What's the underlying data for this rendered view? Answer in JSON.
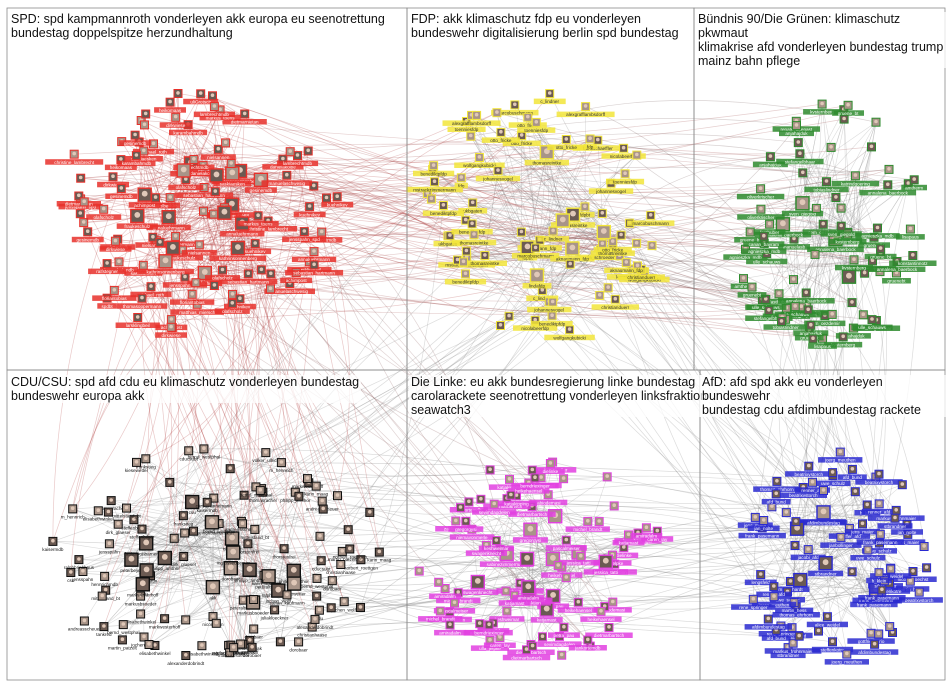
{
  "graph": {
    "panels": [
      {
        "id": "spd",
        "title": "SPD: spd kampmannroth vonderleyen akk europa eu seenotrettung\nbundestag doppelspitze herzundhaltung",
        "color": "#e8302a",
        "seed": 11,
        "labels": [
          "olafscholz",
          "thomasoppermann",
          "heikomaas",
          "larsklingbeil",
          "kuehnikev",
          "nielsannen",
          "saskiaesken",
          "jensspahn_spd",
          "karambahmdb",
          "michael_roth",
          "manuelaschwesig",
          "sebastian_hartmann",
          "fraukeschulz",
          "spdde",
          "spdbt",
          "dietmarnietan",
          "svenjaschulze68",
          "floriantobias",
          "christine_lambrecht",
          "kathrinsonnenberg",
          "achimpost",
          "uliGrotsch",
          "markus_toens",
          "gesinemdb",
          "dirkwiese",
          "matthias_miersch",
          "annaluehrmann",
          "danielakolbe",
          "lambrechtmdb",
          "ralfstegner"
        ]
      },
      {
        "id": "fdp",
        "title": "FDP: akk klimaschutz fdp eu vonderleyen\nbundeswehr digitalisierung berlin spd bundestag",
        "color": "#f2e53a",
        "seed": 23,
        "labels": [
          "c_lindner",
          "fdp",
          "marcobuschmann",
          "nicolabeerfdp",
          "wolfgangkubicki",
          "johannesvogel",
          "konstantinkuhle",
          "lindafdp",
          "benediktpfdp",
          "aknaumann_fdp",
          "mstrackzimmermann",
          "alexgrafflambsdorff",
          "otto_fricke",
          "thomasreintke",
          "ria_schroeder",
          "frankschaeffler",
          "ukbgaten",
          "christianduerr",
          "fdpbt",
          "toenniesfdp"
        ]
      },
      {
        "id": "gruene",
        "title": "Bündnis 90/Die Grünen: klimaschutz pkwmaut\nklimakrise afd vonderleyen bundestag trump\nmainz bahn pflege",
        "color": "#2e8b2e",
        "seed": 37,
        "labels": [
          "cem_oezdemir",
          "annalena_baerbock",
          "gruene_bt",
          "katrindgoering",
          "konstantinnotz",
          "sven_giegold",
          "tobiaslindner",
          "agnieszka_mdb",
          "manuelasb",
          "ulle_schauws",
          "oliverkrischer",
          "anjahajduk",
          "fasthuber",
          "stefangelbhaar",
          "amtherm",
          "gruenebt",
          "lisapaus",
          "renate_kuenast",
          "canan_bayram",
          "kvsternberg"
        ]
      },
      {
        "id": "cdu",
        "title": "CDU/CSU: spd afd cdu eu klimaschutz vonderleyen bundestag\nbundeswehr europa akk",
        "color": "#111111",
        "seed": 53,
        "labels": [
          "akk",
          "cdu",
          "csu",
          "peteraltmaier",
          "jensspahn",
          "cducsubt",
          "markusbsoeder",
          "ralphbrinkhaus",
          "andreasscheuer",
          "paulziemiak",
          "juliakloeckner",
          "thorstenfrei",
          "mgrosseboemer",
          "carstenlinnemann",
          "tankred",
          "peterbeyer",
          "mittelstand_bt",
          "dorobaer",
          "norbert_roettgen",
          "steffenbilger",
          "philipp_amthor",
          "nicomartin",
          "karin_maag",
          "christianhaase",
          "kiesewetter",
          "jochen_wolff",
          "m_hennrich",
          "bernd_westphal",
          "dirk_glaeser",
          "stefan_kaufmann",
          "hennrichmdb",
          "alexanderdobrindt",
          "frankstieg",
          "volker_ullrich",
          "markwesterhoff",
          "fabianvonbarnemann",
          "martin_patzelt",
          "kaisermdb",
          "thomasrachel",
          "elisabethwinkel"
        ]
      },
      {
        "id": "linke",
        "title": "Die Linke: eu akk bundesregierung linke bundestag\ncarolarackete seenotrettung vonderleyen linksfraktion\nseawatch3",
        "color": "#e23fe0",
        "seed": 71,
        "labels": [
          "dietmarbartsch",
          "swagenknecht",
          "katjakipping",
          "berndriexinger",
          "jankortemdb",
          "linksfraktion",
          "dielinke",
          "sevimdagdelen",
          "niemavonmerle",
          "zaklinnastic",
          "gregorgysi",
          "ulla_jelpke",
          "andrejhunko",
          "sabinezimmermann",
          "caren_lay",
          "heikehaensel",
          "fabiodemasi",
          "petra_pau",
          "michel_brandt",
          "norbertmueller",
          "katjamast",
          "keshweimar",
          "jessica_tatti",
          "pascalmeiser",
          "amiradalm"
        ]
      },
      {
        "id": "afd",
        "title": "AfD: afd spd akk eu vonderleyen bundeswehr\nbundestag cdu afdimbundestag rackete",
        "color": "#2a2ad0",
        "seed": 89,
        "labels": [
          "alice_weidel",
          "joerg_meuthen",
          "beatrixvstorch",
          "afdimbundestag",
          "afd_bund",
          "gottfriedcurio",
          "frank_pasemann",
          "stbrandner",
          "marcbernhard",
          "jens_maier",
          "nicole_hoechst",
          "martin_hess",
          "lengsfeld",
          "markus_frohnmaier",
          "jacobi_afd",
          "thomas_ehrhorn",
          "steffenkotre",
          "rene_springer",
          "h_klein",
          "jan_nolte",
          "m_reichardt",
          "uwe_schulz",
          "pfeiffer_afd",
          "renner_afd",
          "janbollinger"
        ]
      }
    ]
  }
}
